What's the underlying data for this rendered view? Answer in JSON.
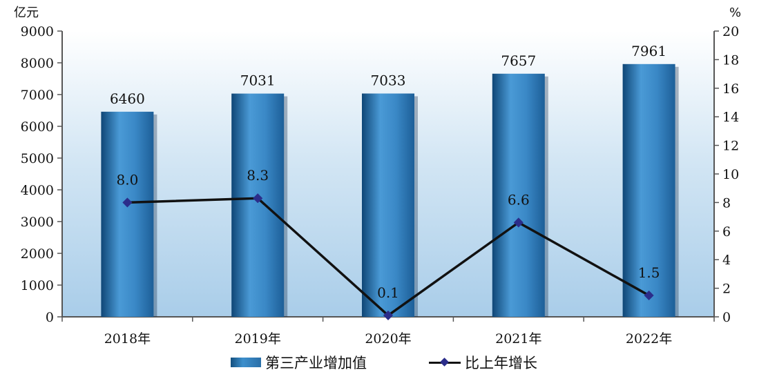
{
  "chart_data": {
    "type": "bar",
    "categories": [
      "2018年",
      "2019年",
      "2020年",
      "2021年",
      "2022年"
    ],
    "series": [
      {
        "name": "第三产业增加值",
        "type": "bar",
        "axis": "left",
        "values": [
          6460,
          7031,
          7033,
          7657,
          7961
        ],
        "color": "#3d8fcc"
      },
      {
        "name": "比上年增长",
        "type": "line",
        "axis": "right",
        "values": [
          8.0,
          8.3,
          0.1,
          6.6,
          1.5
        ],
        "color": "#111111",
        "marker_color": "#2b2d8a"
      }
    ],
    "bar_labels": [
      "6460",
      "7031",
      "7033",
      "7657",
      "7961"
    ],
    "line_labels": [
      "8.0",
      "8.3",
      "0.1",
      "6.6",
      "1.5"
    ],
    "y_left": {
      "unit": "亿元",
      "min": 0,
      "max": 9000,
      "step": 1000,
      "ticks": [
        "0",
        "1000",
        "2000",
        "3000",
        "4000",
        "5000",
        "6000",
        "7000",
        "8000",
        "9000"
      ]
    },
    "y_right": {
      "unit": "%",
      "min": 0,
      "max": 20,
      "step": 2,
      "ticks": [
        "0",
        "2",
        "4",
        "6",
        "8",
        "10",
        "12",
        "14",
        "16",
        "18",
        "20"
      ]
    },
    "legend_position": "bottom",
    "grid": false
  }
}
